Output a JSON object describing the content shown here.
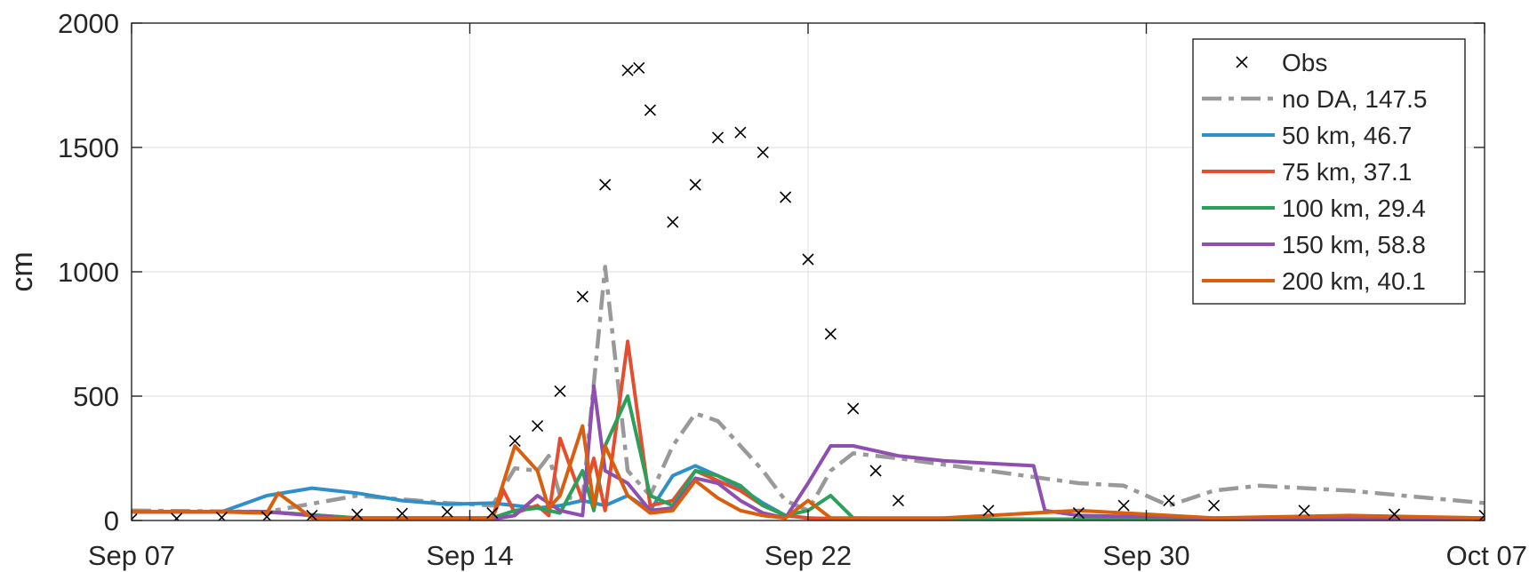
{
  "chart_data": {
    "type": "line",
    "title": "",
    "xlabel": "",
    "ylabel": "cm",
    "xlim": [
      "2015-09-07",
      "2015-10-07"
    ],
    "ylim": [
      0,
      2000
    ],
    "x_ticks": [
      "Sep 07",
      "Sep 14",
      "Sep 22",
      "Sep 30",
      "Oct 07"
    ],
    "x_tick_dates": [
      "2015-09-07",
      "2015-09-15",
      "2015-09-23",
      "2015-10-01",
      "2015-10-09"
    ],
    "y_ticks": [
      0,
      500,
      1000,
      1500,
      2000
    ],
    "grid": true,
    "legend_position": "top-right",
    "series": [
      {
        "name": "Obs",
        "style": "marker-x",
        "color": "#000000",
        "x": [
          "2015-09-07",
          "2015-09-08",
          "2015-09-09",
          "2015-09-10",
          "2015-09-11",
          "2015-09-12",
          "2015-09-13",
          "2015-09-14",
          "2015-09-15",
          "2015-09-15T12",
          "2015-09-16",
          "2015-09-16T12",
          "2015-09-17",
          "2015-09-17T12",
          "2015-09-18",
          "2015-09-18T06",
          "2015-09-18T12",
          "2015-09-19",
          "2015-09-19T12",
          "2015-09-20",
          "2015-09-20T12",
          "2015-09-21",
          "2015-09-21T12",
          "2015-09-22",
          "2015-09-22T12",
          "2015-09-23",
          "2015-09-23T12",
          "2015-09-24",
          "2015-09-26",
          "2015-09-28",
          "2015-09-29",
          "2015-09-30",
          "2015-10-01",
          "2015-10-03",
          "2015-10-05",
          "2015-10-07"
        ],
        "y": [
          5,
          8,
          12,
          15,
          20,
          25,
          28,
          35,
          30,
          320,
          380,
          520,
          900,
          1350,
          1810,
          1820,
          1650,
          1200,
          1350,
          1540,
          1560,
          1480,
          1300,
          1050,
          750,
          450,
          200,
          80,
          40,
          30,
          60,
          80,
          60,
          40,
          25,
          20
        ]
      },
      {
        "name": "no DA, 147.5",
        "style": "dash-dot",
        "color": "#999999",
        "x": [
          "2015-09-07",
          "2015-09-10",
          "2015-09-12",
          "2015-09-14",
          "2015-09-15",
          "2015-09-15T12",
          "2015-09-16",
          "2015-09-16T06",
          "2015-09-16T12",
          "2015-09-17",
          "2015-09-17T12",
          "2015-09-18",
          "2015-09-18T12",
          "2015-09-19",
          "2015-09-19T12",
          "2015-09-20",
          "2015-09-20T12",
          "2015-09-21",
          "2015-09-21T12",
          "2015-09-22",
          "2015-09-22T12",
          "2015-09-23",
          "2015-09-24",
          "2015-09-26",
          "2015-09-28",
          "2015-09-29",
          "2015-09-30",
          "2015-10-01",
          "2015-10-02",
          "2015-10-04",
          "2015-10-07"
        ],
        "y": [
          40,
          35,
          100,
          70,
          60,
          210,
          200,
          260,
          100,
          80,
          1020,
          200,
          100,
          300,
          430,
          400,
          300,
          200,
          80,
          40,
          200,
          270,
          250,
          200,
          150,
          140,
          60,
          120,
          140,
          120,
          70
        ]
      },
      {
        "name": "50 km, 46.7",
        "style": "solid",
        "color": "#2f8fc9",
        "x": [
          "2015-09-07",
          "2015-09-09",
          "2015-09-10",
          "2015-09-11",
          "2015-09-12",
          "2015-09-13",
          "2015-09-14",
          "2015-09-15",
          "2015-09-16",
          "2015-09-16T12",
          "2015-09-17",
          "2015-09-17T12",
          "2015-09-18",
          "2015-09-18T12",
          "2015-09-19",
          "2015-09-19T12",
          "2015-09-20",
          "2015-09-20T12",
          "2015-09-21",
          "2015-09-21T12",
          "2015-09-22",
          "2015-09-23",
          "2015-09-25",
          "2015-09-28",
          "2015-10-01",
          "2015-10-04",
          "2015-10-07"
        ],
        "y": [
          35,
          35,
          100,
          130,
          110,
          80,
          65,
          70,
          50,
          60,
          80,
          60,
          100,
          40,
          180,
          220,
          180,
          130,
          70,
          20,
          10,
          5,
          5,
          5,
          5,
          5,
          5
        ]
      },
      {
        "name": "75 km, 37.1",
        "style": "solid",
        "color": "#e54d2e",
        "x": [
          "2015-09-07",
          "2015-09-10",
          "2015-09-12",
          "2015-09-14",
          "2015-09-15",
          "2015-09-15T06",
          "2015-09-15T12",
          "2015-09-16",
          "2015-09-16T06",
          "2015-09-16T12",
          "2015-09-17",
          "2015-09-17T06",
          "2015-09-17T12",
          "2015-09-18",
          "2015-09-18T12",
          "2015-09-19",
          "2015-09-19T12",
          "2015-09-20",
          "2015-09-20T12",
          "2015-09-21",
          "2015-09-21T12",
          "2015-09-22",
          "2015-09-23",
          "2015-09-25",
          "2015-09-28",
          "2015-10-01",
          "2015-10-04",
          "2015-10-07"
        ],
        "y": [
          35,
          35,
          10,
          10,
          10,
          120,
          30,
          60,
          20,
          330,
          80,
          250,
          40,
          720,
          60,
          80,
          200,
          160,
          120,
          60,
          20,
          10,
          5,
          5,
          5,
          5,
          5,
          5
        ]
      },
      {
        "name": "100 km, 29.4",
        "style": "solid",
        "color": "#2aa05a",
        "x": [
          "2015-09-07",
          "2015-09-10",
          "2015-09-12",
          "2015-09-14",
          "2015-09-15",
          "2015-09-15T12",
          "2015-09-16",
          "2015-09-16T12",
          "2015-09-17",
          "2015-09-17T06",
          "2015-09-17T12",
          "2015-09-18",
          "2015-09-18T12",
          "2015-09-19",
          "2015-09-19T12",
          "2015-09-20",
          "2015-09-20T12",
          "2015-09-21",
          "2015-09-21T12",
          "2015-09-22",
          "2015-09-22T12",
          "2015-09-23",
          "2015-09-25",
          "2015-09-28",
          "2015-10-01",
          "2015-10-04",
          "2015-10-07"
        ],
        "y": [
          35,
          35,
          10,
          10,
          10,
          40,
          50,
          30,
          200,
          40,
          300,
          500,
          100,
          60,
          200,
          180,
          140,
          60,
          20,
          40,
          100,
          10,
          5,
          5,
          5,
          5,
          5
        ]
      },
      {
        "name": "150 km, 58.8",
        "style": "solid",
        "color": "#8e4fb0",
        "x": [
          "2015-09-07",
          "2015-09-10",
          "2015-09-12",
          "2015-09-14",
          "2015-09-15",
          "2015-09-15T12",
          "2015-09-16",
          "2015-09-16T12",
          "2015-09-17",
          "2015-09-17T06",
          "2015-09-17T12",
          "2015-09-18",
          "2015-09-18T12",
          "2015-09-19",
          "2015-09-19T12",
          "2015-09-20",
          "2015-09-20T12",
          "2015-09-21",
          "2015-09-21T12",
          "2015-09-22",
          "2015-09-22T12",
          "2015-09-23",
          "2015-09-24",
          "2015-09-25",
          "2015-09-26",
          "2015-09-27",
          "2015-09-27T06",
          "2015-09-28",
          "2015-10-01",
          "2015-10-04",
          "2015-10-07"
        ],
        "y": [
          35,
          35,
          5,
          5,
          5,
          20,
          100,
          40,
          20,
          540,
          200,
          150,
          40,
          50,
          170,
          150,
          80,
          30,
          10,
          150,
          300,
          300,
          260,
          240,
          230,
          220,
          40,
          20,
          10,
          10,
          10
        ]
      },
      {
        "name": "200 km, 40.1",
        "style": "solid",
        "color": "#d95f0e",
        "x": [
          "2015-09-07",
          "2015-09-09",
          "2015-09-10",
          "2015-09-10T06",
          "2015-09-11",
          "2015-09-13",
          "2015-09-14",
          "2015-09-15",
          "2015-09-15T12",
          "2015-09-16",
          "2015-09-16T06",
          "2015-09-16T12",
          "2015-09-17",
          "2015-09-17T06",
          "2015-09-17T12",
          "2015-09-18",
          "2015-09-18T12",
          "2015-09-19",
          "2015-09-19T12",
          "2015-09-20",
          "2015-09-20T12",
          "2015-09-21",
          "2015-09-21T12",
          "2015-09-22",
          "2015-09-22T12",
          "2015-09-23",
          "2015-09-25",
          "2015-09-28",
          "2015-10-01",
          "2015-10-04",
          "2015-10-07"
        ],
        "y": [
          35,
          35,
          30,
          110,
          10,
          10,
          10,
          10,
          300,
          200,
          50,
          100,
          380,
          60,
          300,
          100,
          30,
          40,
          160,
          90,
          40,
          20,
          10,
          80,
          10,
          10,
          10,
          40,
          10,
          20,
          10
        ]
      }
    ]
  }
}
